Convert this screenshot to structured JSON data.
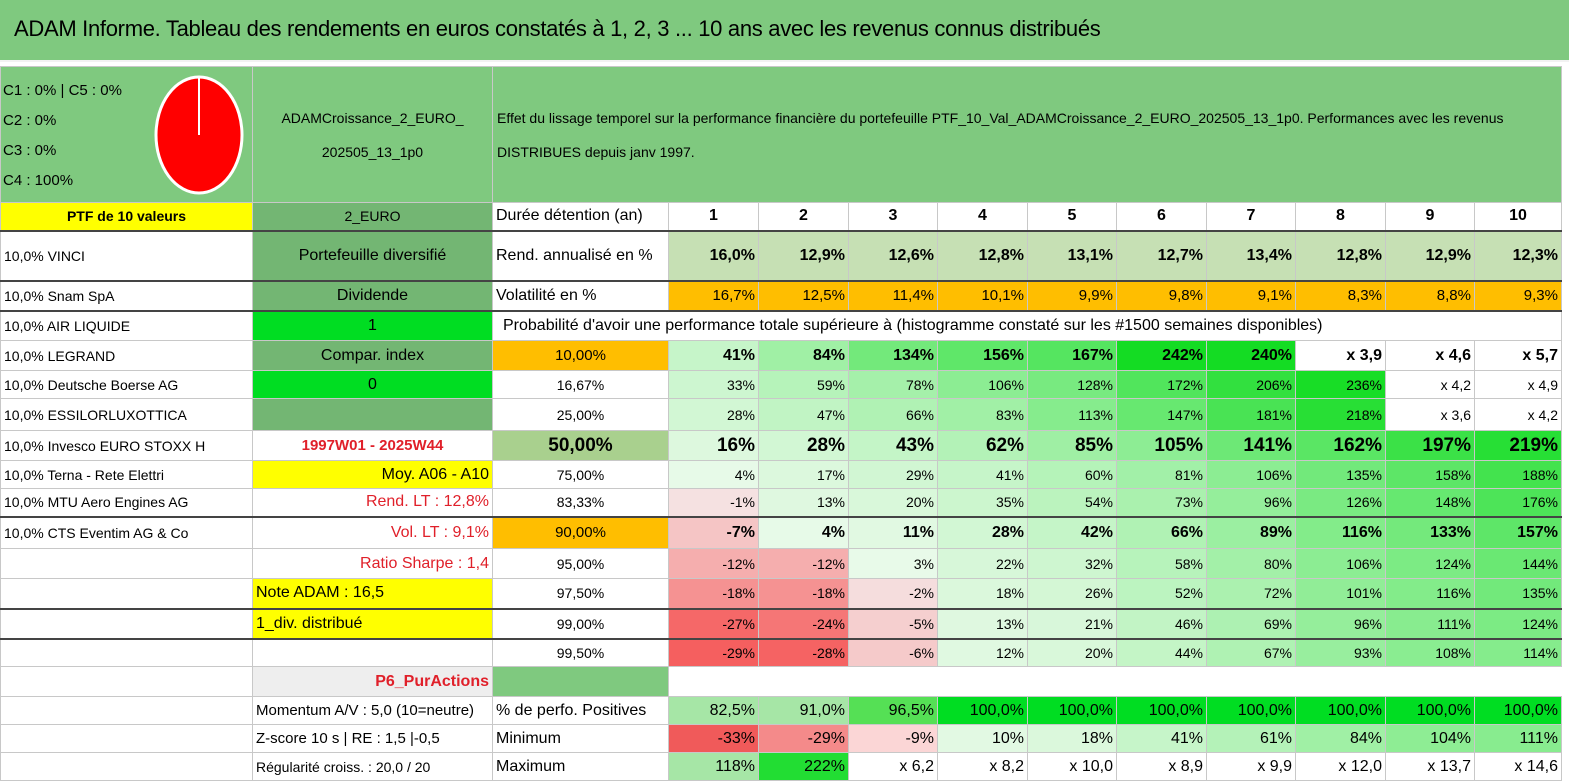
{
  "title": "ADAM Informe. Tableau des rendements en euros constatés à 1, 2, 3 ... 10 ans avec les revenus connus distribués",
  "pie": {
    "legend": [
      "C1 : 0% | C5 : 0%",
      "C2 : 0%",
      "C3 : 0%",
      "C4 : 100%"
    ],
    "color": "#ff0000"
  },
  "portfolio_name": "ADAMCroissance_2_EURO_ 202505_13_1p0",
  "effect_text": "Effet du lissage temporel sur la performance financière du portefeuille PTF_10_Val_ADAMCroissance_2_EURO_202505_13_1p0. Performances avec les revenus DISTRIBUES depuis janv 1997.",
  "holdings_header": "PTF de 10 valeurs",
  "holdings": [
    "10,0% VINCI",
    "10,0% Snam SpA",
    "10,0% AIR LIQUIDE",
    "10,0% LEGRAND",
    "10,0% Deutsche Boerse AG",
    "10,0% ESSILORLUXOTTICA",
    "10,0% Invesco EURO STOXX H",
    "10,0% Terna - Rete Elettri",
    "10,0% MTU Aero Engines AG",
    "10,0% CTS Eventim AG & Co"
  ],
  "info": {
    "currency": "2_EURO",
    "type": "Portefeuille diversifié",
    "dividend_label": "Dividende",
    "dividend_value": "1",
    "compar_label": "Compar. index",
    "compar_value": "0",
    "period": "1997W01 - 2025W44",
    "moy": "Moy. A06 - A10",
    "rend_lt": "Rend. LT : 12,8%",
    "vol_lt": "Vol. LT : 9,1%",
    "sharpe": "Ratio Sharpe : 1,4",
    "note": "Note ADAM : 16,5",
    "div": "1_div. distribué",
    "category": "P6_PurActions",
    "momentum": "Momentum A/V : 5,0 (10=neutre)",
    "zscore": "Z-score 10 s | RE : 1,5 |-0,5",
    "regularite": "Régularité croiss. : 20,0 / 20"
  },
  "durations_label": "Durée détention (an)",
  "years": [
    "1",
    "2",
    "3",
    "4",
    "5",
    "6",
    "7",
    "8",
    "9",
    "10"
  ],
  "rend_label": "Rend. annualisé en %",
  "rend": [
    "16,0%",
    "12,9%",
    "12,6%",
    "12,8%",
    "13,1%",
    "12,7%",
    "13,4%",
    "12,8%",
    "12,9%",
    "12,3%"
  ],
  "vol_label": "Volatilité en %",
  "vol": [
    "16,7%",
    "12,5%",
    "11,4%",
    "10,1%",
    "9,9%",
    "9,8%",
    "9,1%",
    "8,3%",
    "8,8%",
    "9,3%"
  ],
  "prob_label": "Probabilité d'avoir une performance totale supérieure à (histogramme constaté sur les #1500 semaines disponibles)",
  "prob_rows": [
    {
      "p": "10,00%",
      "v": [
        "41%",
        "84%",
        "134%",
        "156%",
        "167%",
        "242%",
        "240%",
        "x 3,9",
        "x 4,6",
        "x 5,7"
      ]
    },
    {
      "p": "16,67%",
      "v": [
        "33%",
        "59%",
        "78%",
        "106%",
        "128%",
        "172%",
        "206%",
        "236%",
        "x 4,2",
        "x 4,9"
      ]
    },
    {
      "p": "25,00%",
      "v": [
        "28%",
        "47%",
        "66%",
        "83%",
        "113%",
        "147%",
        "181%",
        "218%",
        "x 3,6",
        "x 4,2"
      ]
    },
    {
      "p": "50,00%",
      "v": [
        "16%",
        "28%",
        "43%",
        "62%",
        "85%",
        "105%",
        "141%",
        "162%",
        "197%",
        "219%"
      ]
    },
    {
      "p": "75,00%",
      "v": [
        "4%",
        "17%",
        "29%",
        "41%",
        "60%",
        "81%",
        "106%",
        "135%",
        "158%",
        "188%"
      ]
    },
    {
      "p": "83,33%",
      "v": [
        "-1%",
        "13%",
        "20%",
        "35%",
        "54%",
        "73%",
        "96%",
        "126%",
        "148%",
        "176%"
      ]
    },
    {
      "p": "90,00%",
      "v": [
        "-7%",
        "4%",
        "11%",
        "28%",
        "42%",
        "66%",
        "89%",
        "116%",
        "133%",
        "157%"
      ]
    },
    {
      "p": "95,00%",
      "v": [
        "-12%",
        "-12%",
        "3%",
        "22%",
        "32%",
        "58%",
        "80%",
        "106%",
        "124%",
        "144%"
      ]
    },
    {
      "p": "97,50%",
      "v": [
        "-18%",
        "-18%",
        "-2%",
        "18%",
        "26%",
        "52%",
        "72%",
        "101%",
        "116%",
        "135%"
      ]
    },
    {
      "p": "99,00%",
      "v": [
        "-27%",
        "-24%",
        "-5%",
        "13%",
        "21%",
        "46%",
        "69%",
        "96%",
        "111%",
        "124%"
      ]
    },
    {
      "p": "99,50%",
      "v": [
        "-29%",
        "-28%",
        "-6%",
        "12%",
        "20%",
        "44%",
        "67%",
        "93%",
        "108%",
        "114%"
      ]
    }
  ],
  "pos_label": "% de perfo. Positives",
  "pos": [
    "82,5%",
    "91,0%",
    "96,5%",
    "100,0%",
    "100,0%",
    "100,0%",
    "100,0%",
    "100,0%",
    "100,0%",
    "100,0%"
  ],
  "min_label": "Minimum",
  "min": [
    "-33%",
    "-29%",
    "-9%",
    "10%",
    "18%",
    "41%",
    "61%",
    "84%",
    "104%",
    "111%"
  ],
  "max_label": "Maximum",
  "max": [
    "118%",
    "222%",
    "x 6,2",
    "x 8,2",
    "x 10,0",
    "x 8,9",
    "x 9,9",
    "x 12,0",
    "x 13,7",
    "x 14,6"
  ]
}
